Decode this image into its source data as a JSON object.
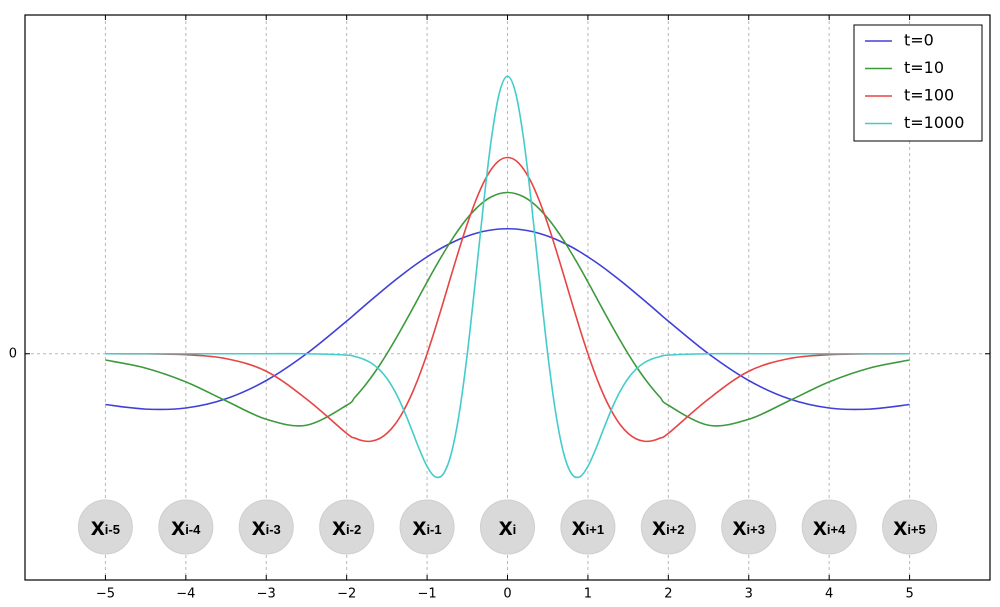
{
  "chart_data": {
    "type": "line",
    "x": [
      -5,
      -4.5,
      -4,
      -3.5,
      -3,
      -2.5,
      -2,
      -1.9,
      -1.8,
      -1.7,
      -1.6,
      -1.5,
      -1.4,
      -1.3,
      -1.2,
      -1.1,
      -1,
      -0.9,
      -0.8,
      -0.7,
      -0.6,
      -0.5,
      -0.4,
      -0.3,
      -0.2,
      -0.1,
      0,
      0.1,
      0.2,
      0.3,
      0.4,
      0.5,
      0.6,
      0.7,
      0.8,
      0.9,
      1,
      1.1,
      1.2,
      1.3,
      1.4,
      1.5,
      1.6,
      1.7,
      1.8,
      1.9,
      2,
      2.5,
      3,
      3.5,
      4,
      4.5,
      5
    ],
    "series": [
      {
        "name": "t=0",
        "color": "#4040d8",
        "values": [
          -0.406,
          -0.443,
          -0.434,
          -0.36,
          -0.214,
          0,
          0.261,
          0.316,
          0.372,
          0.427,
          0.481,
          0.535,
          0.587,
          0.637,
          0.686,
          0.732,
          0.775,
          0.816,
          0.853,
          0.886,
          0.916,
          0.941,
          0.962,
          0.979,
          0.99,
          0.998,
          1,
          0.998,
          0.99,
          0.979,
          0.962,
          0.941,
          0.916,
          0.886,
          0.853,
          0.816,
          0.775,
          0.732,
          0.686,
          0.637,
          0.587,
          0.535,
          0.481,
          0.427,
          0.372,
          0.316,
          0.261,
          0,
          -0.214,
          -0.36,
          -0.434,
          -0.443,
          -0.406
        ]
      },
      {
        "name": "t=10",
        "color": "#3c9a3c",
        "values": [
          -0.05,
          -0.115,
          -0.225,
          -0.377,
          -0.524,
          -0.572,
          -0.412,
          -0.35,
          -0.276,
          -0.193,
          -0.101,
          0,
          0.108,
          0.221,
          0.337,
          0.456,
          0.574,
          0.69,
          0.8,
          0.905,
          1.0,
          1.085,
          1.156,
          1.214,
          1.256,
          1.281,
          1.29,
          1.281,
          1.256,
          1.214,
          1.156,
          1.085,
          1.0,
          0.905,
          0.8,
          0.69,
          0.574,
          0.456,
          0.337,
          0.221,
          0.108,
          0,
          -0.101,
          -0.193,
          -0.276,
          -0.35,
          -0.412,
          -0.572,
          -0.524,
          -0.377,
          -0.225,
          -0.115,
          -0.05
        ]
      },
      {
        "name": "t=100",
        "color": "#e84444",
        "values": [
          0,
          -0.001,
          -0.008,
          -0.039,
          -0.14,
          -0.362,
          -0.637,
          -0.674,
          -0.696,
          -0.7,
          -0.681,
          -0.637,
          -0.566,
          -0.465,
          -0.336,
          -0.18,
          0,
          0.199,
          0.41,
          0.627,
          0.839,
          1.039,
          1.217,
          1.366,
          1.477,
          1.547,
          1.57,
          1.547,
          1.477,
          1.366,
          1.217,
          1.039,
          0.839,
          0.627,
          0.41,
          0.199,
          0,
          -0.18,
          -0.336,
          -0.465,
          -0.566,
          -0.637,
          -0.681,
          -0.7,
          -0.696,
          -0.674,
          -0.637,
          -0.362,
          -0.14,
          -0.039,
          -0.008,
          -0.001,
          0
        ]
      },
      {
        "name": "t=1000",
        "color": "#44cccc",
        "values": [
          0,
          0,
          0,
          0,
          0,
          0,
          -0.011,
          -0.022,
          -0.041,
          -0.072,
          -0.123,
          -0.197,
          -0.301,
          -0.435,
          -0.593,
          -0.758,
          -0.901,
          -0.984,
          -0.963,
          -0.8,
          -0.475,
          0,
          0.58,
          1.187,
          1.721,
          2.089,
          2.22,
          2.089,
          1.721,
          1.187,
          0.58,
          0,
          -0.475,
          -0.8,
          -0.963,
          -0.984,
          -0.901,
          -0.758,
          -0.593,
          -0.435,
          -0.301,
          -0.197,
          -0.123,
          -0.072,
          -0.041,
          -0.022,
          -0.011,
          0,
          0,
          0,
          0,
          0,
          0
        ]
      }
    ],
    "xlim": [
      -6,
      6
    ],
    "ylim": [
      -1.81,
      2.71
    ],
    "xticks": [
      {
        "value": -5,
        "label": "−5"
      },
      {
        "value": -4,
        "label": "−4"
      },
      {
        "value": -3,
        "label": "−3"
      },
      {
        "value": -2,
        "label": "−2"
      },
      {
        "value": -1,
        "label": "−1"
      },
      0,
      1,
      2,
      3,
      4,
      5
    ],
    "yticks": [
      0
    ],
    "grid": true,
    "legend": "upper right",
    "annotations": [
      {
        "text": "x",
        "sub": "i-5",
        "x": -5
      },
      {
        "text": "x",
        "sub": "i-4",
        "x": -4
      },
      {
        "text": "x",
        "sub": "i-3",
        "x": -3
      },
      {
        "text": "x",
        "sub": "i-2",
        "x": -2
      },
      {
        "text": "x",
        "sub": "i-1",
        "x": -1
      },
      {
        "text": "x",
        "sub": "i",
        "x": 0
      },
      {
        "text": "x",
        "sub": "i+1",
        "x": 1
      },
      {
        "text": "x",
        "sub": "i+2",
        "x": 2
      },
      {
        "text": "x",
        "sub": "i+3",
        "x": 3
      },
      {
        "text": "x",
        "sub": "i+4",
        "x": 4
      },
      {
        "text": "x",
        "sub": "i+5",
        "x": 5
      }
    ]
  }
}
